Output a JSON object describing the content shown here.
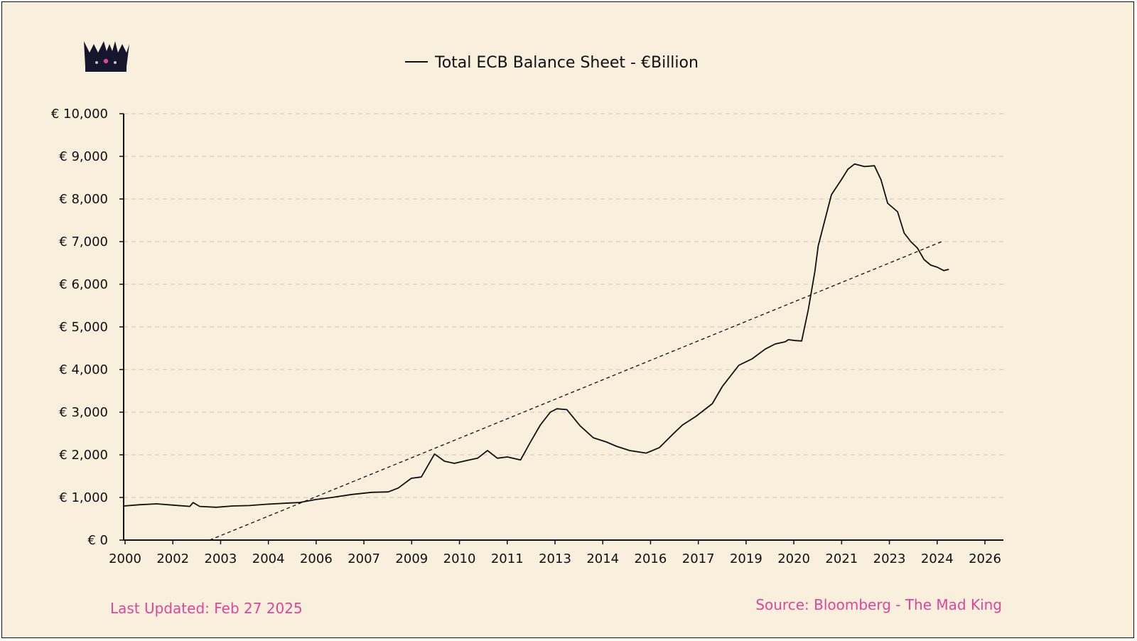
{
  "logo": {
    "icon": "crown-icon"
  },
  "footer": {
    "updated": "Last Updated: Feb 27 2025",
    "source": "Source: Bloomberg - The Mad King"
  },
  "colors": {
    "background": "#f8efdd",
    "line": "#111111",
    "grid": "#cfc6b3",
    "footer_text": "#e0459a"
  },
  "chart_data": {
    "type": "line",
    "title": "",
    "xlabel": "",
    "ylabel": "",
    "ylim": [
      0,
      10000
    ],
    "y_ticks": [
      0,
      1000,
      2000,
      3000,
      4000,
      5000,
      6000,
      7000,
      8000,
      9000,
      10000
    ],
    "y_tick_labels": [
      "€ 0",
      "€ 1,000",
      "€ 2,000",
      "€ 3,000",
      "€ 4,000",
      "€ 5,000",
      "€ 6,000",
      "€ 7,000",
      "€ 8,000",
      "€ 9,000",
      "€ 10,000"
    ],
    "x_tick_labels": [
      "2000",
      "2002",
      "2003",
      "2004",
      "2006",
      "2007",
      "2009",
      "2010",
      "2011",
      "2013",
      "2014",
      "2016",
      "2017",
      "2019",
      "2020",
      "2021",
      "2023",
      "2024",
      "2026"
    ],
    "grid": true,
    "legend_position": "top-center",
    "series": [
      {
        "name": "Total ECB Balance Sheet - €Billion",
        "style": "solid",
        "x": [
          2000.0,
          2000.5,
          2001.0,
          2001.5,
          2002.0,
          2002.1,
          2002.3,
          2002.8,
          2003.3,
          2003.8,
          2004.3,
          2005.0,
          2005.3,
          2005.8,
          2006.3,
          2006.9,
          2007.5,
          2008.0,
          2008.3,
          2008.7,
          2009.0,
          2009.4,
          2009.7,
          2010.0,
          2010.4,
          2010.7,
          2011.0,
          2011.3,
          2011.6,
          2012.0,
          2012.1,
          2012.3,
          2012.6,
          2012.9,
          2013.1,
          2013.4,
          2013.8,
          2014.2,
          2014.6,
          2014.9,
          2015.3,
          2015.8,
          2016.2,
          2016.6,
          2016.9,
          2017.3,
          2017.8,
          2018.1,
          2018.6,
          2019.0,
          2019.4,
          2019.7,
          2020.0,
          2020.1,
          2020.3,
          2020.5,
          2020.7,
          2020.9,
          2021.0,
          2021.2,
          2021.4,
          2021.7,
          2021.9,
          2022.1,
          2022.4,
          2022.7,
          2022.9,
          2023.1,
          2023.4,
          2023.6,
          2023.8,
          2024.0,
          2024.2,
          2024.4,
          2024.6,
          2024.8,
          2024.95
        ],
        "y": [
          800,
          830,
          850,
          820,
          790,
          880,
          790,
          770,
          800,
          810,
          840,
          870,
          880,
          950,
          1000,
          1070,
          1120,
          1130,
          1220,
          1450,
          1480,
          2020,
          1850,
          1800,
          1870,
          1920,
          2100,
          1920,
          1950,
          1880,
          2020,
          2300,
          2700,
          3000,
          3080,
          3060,
          2680,
          2400,
          2300,
          2200,
          2100,
          2040,
          2170,
          2480,
          2700,
          2900,
          3200,
          3600,
          4100,
          4250,
          4480,
          4600,
          4650,
          4700,
          4680,
          4670,
          5400,
          6300,
          6900,
          7500,
          8100,
          8450,
          8700,
          8820,
          8760,
          8780,
          8450,
          7900,
          7700,
          7200,
          7000,
          6850,
          6580,
          6450,
          6400,
          6320,
          6350
        ]
      },
      {
        "name": "",
        "style": "dashed",
        "x": [
          2002.6,
          2024.8
        ],
        "y": [
          0,
          7020
        ]
      }
    ]
  }
}
